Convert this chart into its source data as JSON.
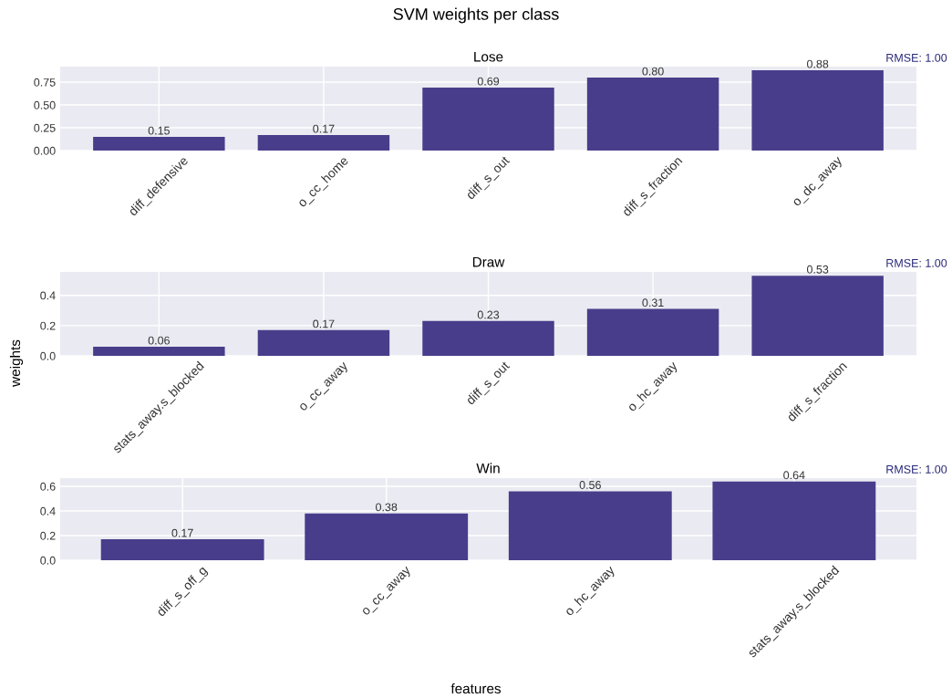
{
  "chart_data": [
    {
      "type": "bar",
      "title": "Lose",
      "categories": [
        "diff_defensive",
        "o_cc_home",
        "diff_s_out",
        "diff_s_fraction",
        "o_dc_away"
      ],
      "values": [
        0.15,
        0.17,
        0.69,
        0.8,
        0.88
      ],
      "value_labels": [
        "0.15",
        "0.17",
        "0.69",
        "0.80",
        "0.88"
      ],
      "color": "#483d8b",
      "ylim": [
        0,
        0.92
      ],
      "yticks": [
        {
          "value": 0,
          "label": "0.00"
        },
        {
          "value": 0.25,
          "label": "0.25"
        },
        {
          "value": 0.5,
          "label": "0.50"
        },
        {
          "value": 0.75,
          "label": "0.75"
        }
      ],
      "grid": true,
      "annotations": [
        "SVM weights per class",
        "RMSE: 1.00"
      ]
    },
    {
      "type": "bar",
      "title": "Draw",
      "ylabel": "weights",
      "categories": [
        "stats_away.s_blocked",
        "o_cc_away",
        "diff_s_out",
        "o_hc_away",
        "diff_s_fraction"
      ],
      "values": [
        0.06,
        0.17,
        0.23,
        0.31,
        0.53
      ],
      "value_labels": [
        "0.06",
        "0.17",
        "0.23",
        "0.31",
        "0.53"
      ],
      "color": "#483d8b",
      "ylim": [
        0,
        0.555
      ],
      "yticks": [
        {
          "value": 0,
          "label": "0.0"
        },
        {
          "value": 0.2,
          "label": "0.2"
        },
        {
          "value": 0.4,
          "label": "0.4"
        }
      ],
      "grid": true,
      "annotations": [
        "RMSE: 1.00"
      ]
    },
    {
      "type": "bar",
      "title": "Win",
      "xlabel": "features",
      "categories": [
        "diff_s_off_g",
        "o_cc_away",
        "o_hc_away",
        "stats_away.s_blocked"
      ],
      "values": [
        0.17,
        0.38,
        0.56,
        0.64
      ],
      "value_labels": [
        "0.17",
        "0.38",
        "0.56",
        "0.64"
      ],
      "color": "#483d8b",
      "ylim": [
        0,
        0.667
      ],
      "yticks": [
        {
          "value": 0,
          "label": "0.0"
        },
        {
          "value": 0.2,
          "label": "0.2"
        },
        {
          "value": 0.4,
          "label": "0.4"
        },
        {
          "value": 0.6,
          "label": "0.6"
        }
      ],
      "grid": true,
      "annotations": [
        "RMSE: 1.00"
      ]
    }
  ]
}
